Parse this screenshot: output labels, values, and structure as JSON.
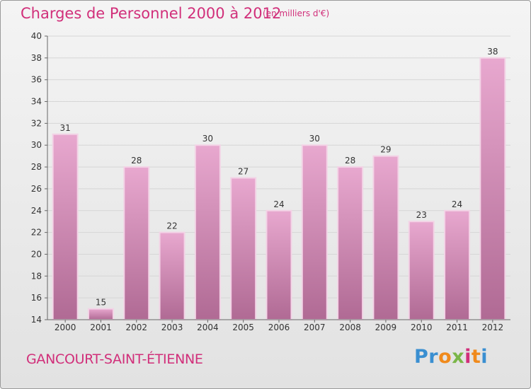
{
  "title": "Charges de Personnel 2000 à 2012",
  "subtitle": "(en milliers d'€)",
  "commune": "GANCOURT-SAINT-ÉTIENNE",
  "logo": {
    "text": "Proxiti",
    "letter_colors": [
      "#3a8fd1",
      "#3a8fd1",
      "#f08a1c",
      "#7ab648",
      "#d12f7a",
      "#f08a1c",
      "#3a8fd1"
    ]
  },
  "colors": {
    "bar_top": "#e8a8cf",
    "bar_bottom": "#b06a94",
    "bar_border": "#f3d3e6",
    "text_accent": "#d12f7a",
    "axis_text": "#333333"
  },
  "chart_data": {
    "type": "bar",
    "categories": [
      "2000",
      "2001",
      "2002",
      "2003",
      "2004",
      "2005",
      "2006",
      "2007",
      "2008",
      "2009",
      "2010",
      "2011",
      "2012"
    ],
    "values": [
      31,
      15,
      28,
      22,
      30,
      27,
      24,
      30,
      28,
      29,
      23,
      24,
      38
    ],
    "data_labels": [
      "31",
      "15",
      "28",
      "22",
      "30",
      "27",
      "24",
      "30",
      "28",
      "29",
      "23",
      "24",
      "38"
    ],
    "ylim": [
      14,
      40
    ],
    "yticks": [
      14,
      16,
      18,
      20,
      22,
      24,
      26,
      28,
      30,
      32,
      34,
      36,
      38,
      40
    ],
    "grid": true
  }
}
